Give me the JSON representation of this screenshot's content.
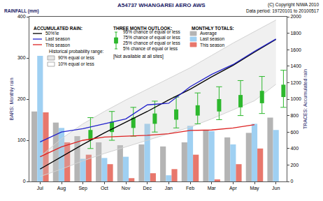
{
  "chart_data": {
    "type": "bar",
    "title": "A54737 WHANGAREI AERO AWS",
    "annotations": {
      "copyright": "(C) Copyright NIWA 2010",
      "data_period": "Data period: 19720101 to 20100517",
      "units": "RAINFALL (mm)"
    },
    "y_label": "BARS: Monthly rain",
    "y2_label": "TRACES: Accumulated rain",
    "categories": [
      "Jul",
      "Aug",
      "Sep",
      "Oct",
      "Nov",
      "Dec",
      "Jan",
      "Feb",
      "Mar",
      "Apr",
      "May",
      "Jun"
    ],
    "ylim": [
      0,
      400
    ],
    "yticks": [
      0,
      100,
      200,
      300,
      400
    ],
    "y2lim": [
      0,
      2000
    ],
    "y2ticks": [
      0,
      200,
      400,
      600,
      800,
      1000,
      1200,
      1400,
      1600,
      1800,
      2000
    ],
    "grid": false,
    "bar_legend_title": "MONTHLY TOTALS:",
    "line_legend_title": "ACCUMULATED RAIN:",
    "series": [
      {
        "name": "Average",
        "type": "bar",
        "color": "#b4b4b4",
        "values": [
          170,
          143,
          110,
          95,
          88,
          90,
          85,
          95,
          125,
          107,
          118,
          155
        ]
      },
      {
        "name": "Last season",
        "type": "bar",
        "color": "#9fd0f2",
        "values": [
          305,
          130,
          55,
          57,
          60,
          140,
          15,
          135,
          122,
          90,
          140,
          125
        ]
      },
      {
        "name": "This season",
        "type": "bar",
        "color": "#e8776c",
        "values": [
          168,
          95,
          65,
          42,
          8,
          20,
          30,
          65,
          5,
          42,
          80,
          null
        ]
      },
      {
        "name": "50%'le",
        "type": "line",
        "axis": "y2",
        "color": "#000000",
        "values": [
          150,
          300,
          450,
          590,
          720,
          850,
          990,
          1120,
          1270,
          1410,
          1570,
          1725
        ]
      },
      {
        "name": "Last season",
        "type": "line",
        "axis": "y2",
        "color": "#2222cc",
        "values": [
          480,
          600,
          640,
          700,
          760,
          930,
          950,
          1150,
          1300,
          1420,
          1580,
          1730
        ]
      },
      {
        "name": "This season",
        "type": "line",
        "axis": "y2",
        "color": "#dd2222",
        "values": [
          300,
          420,
          500,
          540,
          550,
          560,
          580,
          620,
          625,
          650,
          690,
          null
        ]
      }
    ],
    "band": {
      "title": "Historical probability range:",
      "axis": "y2",
      "color": "#d2d2d2",
      "series": [
        {
          "name": "90% equal or less",
          "values": [
            300,
            520,
            700,
            850,
            990,
            1120,
            1250,
            1380,
            1530,
            1680,
            1820,
            1960
          ]
        },
        {
          "name": "10% equal or less",
          "values": [
            60,
            150,
            250,
            340,
            420,
            500,
            580,
            660,
            760,
            870,
            980,
            1180
          ]
        }
      ]
    },
    "outlook": {
      "title": "THREE MONTH OUTLOOK:",
      "note": "[Not available at all sites]",
      "axis": "y2",
      "color": "#2db82d",
      "series": [
        {
          "name": "95% chance of equal or less",
          "values": [
            null,
            null,
            775,
            850,
            900,
            975,
            1025,
            1075,
            1150,
            1225,
            1275,
            1350
          ]
        },
        {
          "name": "75% chance of equal or less",
          "values": [
            null,
            null,
            625,
            725,
            775,
            825,
            875,
            925,
            1000,
            1050,
            1100,
            1175
          ]
        },
        {
          "name": "25% chance of equal or less",
          "values": [
            null,
            null,
            500,
            600,
            650,
            700,
            750,
            800,
            850,
            900,
            950,
            1025
          ]
        },
        {
          "name": "5% chance of equal or less",
          "values": [
            null,
            null,
            400,
            500,
            550,
            600,
            650,
            700,
            750,
            800,
            825,
            900
          ]
        }
      ]
    }
  }
}
